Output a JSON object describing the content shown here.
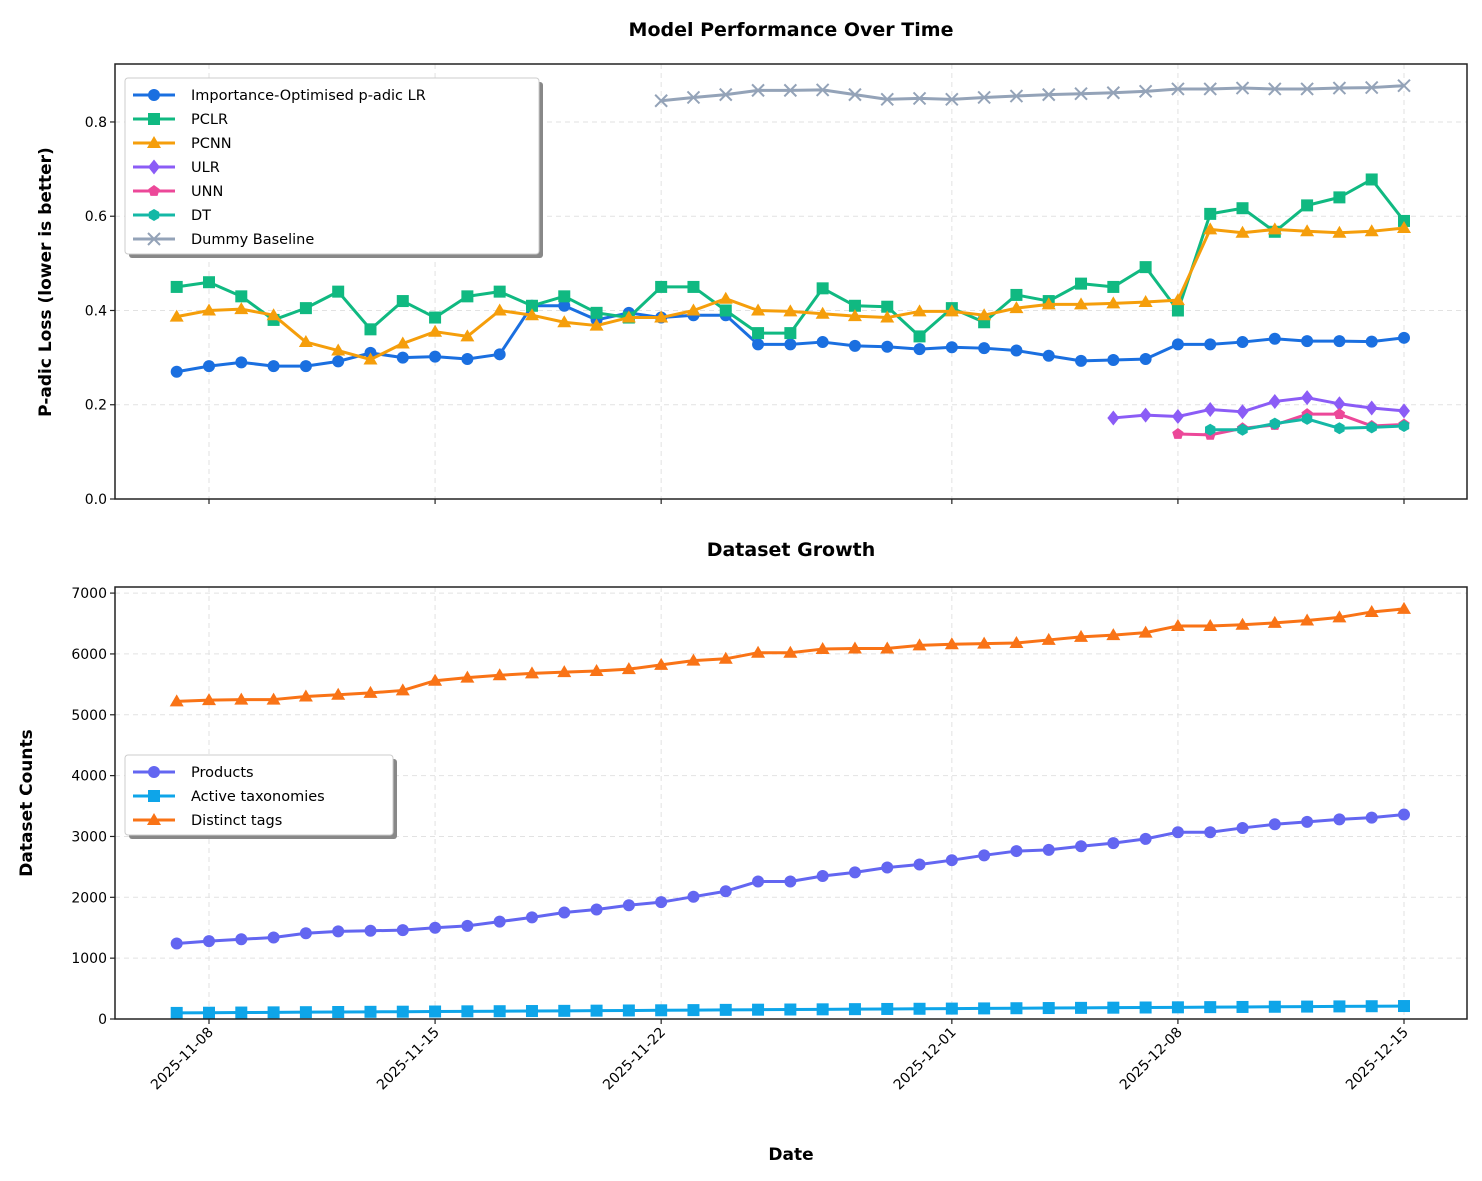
{
  "chart_data": [
    {
      "type": "line",
      "title": "Model Performance Over Time",
      "xlabel": "",
      "ylabel": "P-adic Loss (lower is better)",
      "ylim": [
        0,
        0.923
      ],
      "yticks": [
        "0.0",
        "0.2",
        "0.4",
        "0.6",
        "0.8"
      ],
      "grid": true,
      "legend": "upper-left",
      "x": [
        "2025-11-07",
        "2025-11-08",
        "2025-11-09",
        "2025-11-10",
        "2025-11-11",
        "2025-11-12",
        "2025-11-13",
        "2025-11-14",
        "2025-11-15",
        "2025-11-16",
        "2025-11-17",
        "2025-11-18",
        "2025-11-19",
        "2025-11-20",
        "2025-11-21",
        "2025-11-22",
        "2025-11-23",
        "2025-11-24",
        "2025-11-25",
        "2025-11-26",
        "2025-11-27",
        "2025-11-28",
        "2025-11-29",
        "2025-11-30",
        "2025-12-01",
        "2025-12-02",
        "2025-12-03",
        "2025-12-04",
        "2025-12-05",
        "2025-12-06",
        "2025-12-07",
        "2025-12-08",
        "2025-12-09",
        "2025-12-10",
        "2025-12-11",
        "2025-12-12",
        "2025-12-13",
        "2025-12-14",
        "2025-12-15"
      ],
      "series": [
        {
          "name": "Importance-Optimised p-adic LR",
          "color": "#1a6fe0",
          "marker": "circle",
          "values": [
            0.27,
            0.282,
            0.29,
            0.282,
            0.282,
            0.292,
            0.31,
            0.3,
            0.302,
            0.297,
            0.307,
            0.41,
            0.41,
            0.38,
            0.395,
            0.385,
            0.39,
            0.39,
            0.328,
            0.328,
            0.333,
            0.325,
            0.323,
            0.318,
            0.322,
            0.32,
            0.315,
            0.304,
            0.293,
            0.295,
            0.297,
            0.328,
            0.328,
            0.333,
            0.34,
            0.335,
            0.335,
            0.334,
            0.342
          ]
        },
        {
          "name": "PCLR",
          "color": "#10b981",
          "marker": "square",
          "values": [
            0.45,
            0.46,
            0.43,
            0.38,
            0.405,
            0.44,
            0.36,
            0.42,
            0.385,
            0.43,
            0.44,
            0.41,
            0.43,
            0.395,
            0.385,
            0.45,
            0.45,
            0.4,
            0.352,
            0.352,
            0.447,
            0.41,
            0.408,
            0.345,
            0.405,
            0.375,
            0.433,
            0.42,
            0.457,
            0.45,
            0.492,
            0.4,
            0.605,
            0.617,
            0.567,
            0.623,
            0.64,
            0.678,
            0.59
          ]
        },
        {
          "name": "PCNN",
          "color": "#f59e0b",
          "marker": "triangle",
          "values": [
            0.387,
            0.4,
            0.403,
            0.39,
            0.333,
            0.315,
            0.296,
            0.33,
            0.355,
            0.345,
            0.4,
            0.39,
            0.375,
            0.368,
            0.385,
            0.385,
            0.4,
            0.425,
            0.4,
            0.398,
            0.393,
            0.388,
            0.385,
            0.398,
            0.398,
            0.39,
            0.405,
            0.413,
            0.413,
            0.415,
            0.418,
            0.422,
            0.572,
            0.565,
            0.572,
            0.568,
            0.565,
            0.568,
            0.575
          ]
        },
        {
          "name": "ULR",
          "color": "#8b5cf6",
          "marker": "diamond",
          "values": [
            null,
            null,
            null,
            null,
            null,
            null,
            null,
            null,
            null,
            null,
            null,
            null,
            null,
            null,
            null,
            null,
            null,
            null,
            null,
            null,
            null,
            null,
            null,
            null,
            null,
            null,
            null,
            null,
            null,
            0.172,
            0.178,
            0.175,
            0.19,
            0.185,
            0.207,
            0.215,
            0.202,
            0.193,
            0.187
          ]
        },
        {
          "name": "UNN",
          "color": "#ec4899",
          "marker": "pentagon",
          "values": [
            null,
            null,
            null,
            null,
            null,
            null,
            null,
            null,
            null,
            null,
            null,
            null,
            null,
            null,
            null,
            null,
            null,
            null,
            null,
            null,
            null,
            null,
            null,
            null,
            null,
            null,
            null,
            null,
            null,
            null,
            null,
            0.138,
            0.136,
            0.15,
            0.157,
            0.18,
            0.18,
            0.155,
            0.158
          ]
        },
        {
          "name": "DT",
          "color": "#14b8a6",
          "marker": "hexagon",
          "values": [
            null,
            null,
            null,
            null,
            null,
            null,
            null,
            null,
            null,
            null,
            null,
            null,
            null,
            null,
            null,
            null,
            null,
            null,
            null,
            null,
            null,
            null,
            null,
            null,
            null,
            null,
            null,
            null,
            null,
            null,
            null,
            null,
            0.147,
            0.147,
            0.16,
            0.17,
            0.15,
            0.152,
            0.155
          ]
        },
        {
          "name": "Dummy Baseline",
          "color": "#94a3b8",
          "marker": "x",
          "values": [
            null,
            null,
            null,
            null,
            null,
            null,
            null,
            null,
            null,
            null,
            null,
            null,
            null,
            null,
            null,
            0.845,
            0.852,
            0.858,
            0.867,
            0.867,
            0.868,
            0.858,
            0.848,
            0.85,
            0.848,
            0.852,
            0.855,
            0.858,
            0.86,
            0.862,
            0.865,
            0.87,
            0.87,
            0.872,
            0.87,
            0.87,
            0.872,
            0.873,
            0.877
          ]
        }
      ]
    },
    {
      "type": "line",
      "title": "Dataset Growth",
      "xlabel": "Date",
      "ylabel": "Dataset Counts",
      "ylim": [
        0,
        7100
      ],
      "yticks": [
        "0",
        "1000",
        "2000",
        "3000",
        "4000",
        "5000",
        "6000",
        "7000"
      ],
      "xticks": [
        "2025-11-08",
        "2025-11-15",
        "2025-11-22",
        "2025-12-01",
        "2025-12-08",
        "2025-12-15"
      ],
      "grid": true,
      "legend": "center-left",
      "series": [
        {
          "name": "Products",
          "color": "#6366f1",
          "marker": "circle",
          "values": [
            1240,
            1280,
            1310,
            1340,
            1410,
            1440,
            1450,
            1460,
            1500,
            1530,
            1600,
            1670,
            1750,
            1800,
            1870,
            1920,
            2010,
            2100,
            2260,
            2260,
            2350,
            2410,
            2490,
            2540,
            2610,
            2690,
            2760,
            2780,
            2840,
            2890,
            2960,
            3070,
            3070,
            3140,
            3200,
            3240,
            3280,
            3310,
            3360
          ]
        },
        {
          "name": "Active taxonomies",
          "color": "#0ea5e9",
          "marker": "square",
          "values": [
            100,
            103,
            106,
            109,
            112,
            115,
            118,
            120,
            123,
            126,
            128,
            131,
            134,
            137,
            140,
            143,
            146,
            150,
            153,
            156,
            159,
            162,
            165,
            168,
            171,
            174,
            177,
            180,
            183,
            186,
            189,
            192,
            195,
            198,
            201,
            204,
            207,
            210,
            213
          ]
        },
        {
          "name": "Distinct tags",
          "color": "#f97316",
          "marker": "triangle",
          "values": [
            5220,
            5240,
            5250,
            5250,
            5300,
            5330,
            5360,
            5400,
            5560,
            5610,
            5650,
            5680,
            5700,
            5720,
            5750,
            5820,
            5890,
            5920,
            6020,
            6020,
            6080,
            6090,
            6090,
            6140,
            6160,
            6170,
            6180,
            6230,
            6280,
            6310,
            6350,
            6460,
            6460,
            6480,
            6510,
            6550,
            6600,
            6690,
            6740
          ]
        }
      ]
    }
  ]
}
